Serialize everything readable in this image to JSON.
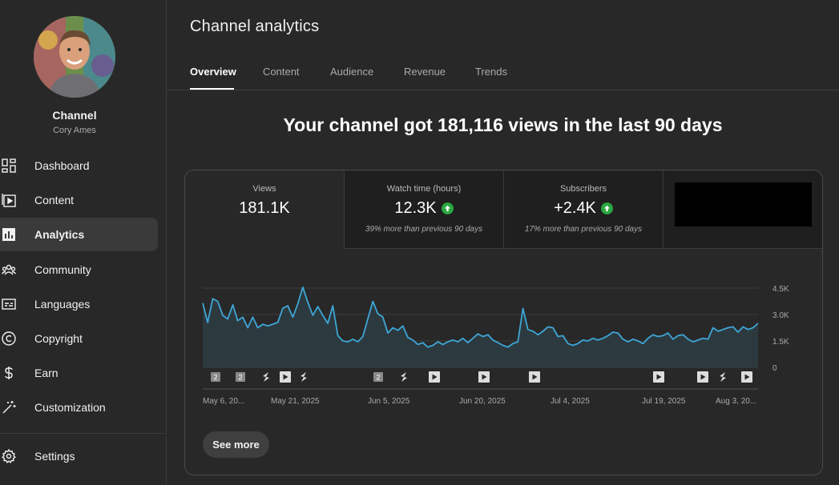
{
  "sidebar": {
    "channel_label": "Channel",
    "channel_handle": "Cory Ames",
    "items": [
      {
        "label": "Dashboard",
        "icon": "dashboard-icon"
      },
      {
        "label": "Content",
        "icon": "content-icon"
      },
      {
        "label": "Analytics",
        "icon": "analytics-icon",
        "active": true
      },
      {
        "label": "Community",
        "icon": "community-icon"
      },
      {
        "label": "Languages",
        "icon": "languages-icon"
      },
      {
        "label": "Copyright",
        "icon": "copyright-icon"
      },
      {
        "label": "Earn",
        "icon": "earn-icon"
      },
      {
        "label": "Customization",
        "icon": "customization-icon"
      }
    ],
    "settings_label": "Settings"
  },
  "page": {
    "title": "Channel analytics",
    "tabs": [
      "Overview",
      "Content",
      "Audience",
      "Revenue",
      "Trends"
    ],
    "active_tab": "Overview",
    "headline": "Your channel got 181,116 views in the last 90 days"
  },
  "metrics": [
    {
      "label": "Views",
      "value": "181.1K",
      "note": ""
    },
    {
      "label": "Watch time (hours)",
      "value": "12.3K",
      "note": "39% more than previous 90 days",
      "trend": "up"
    },
    {
      "label": "Subscribers",
      "value": "+2.4K",
      "note": "17% more than previous 90 days",
      "trend": "up"
    }
  ],
  "colors": {
    "accent_line": "#3ea6d6",
    "trend_up": "#2ba640"
  },
  "chart_data": {
    "type": "area",
    "y_ticks": [
      "4.5K",
      "3.0K",
      "1.5K",
      "0"
    ],
    "ylim": [
      0,
      4500
    ],
    "x_tick_labels": [
      "May 6, 20...",
      "May 21, 2025",
      "Jun 5, 2025",
      "Jun 20, 2025",
      "Jul 4, 2025",
      "Jul 19, 2025",
      "Aug 3, 20..."
    ],
    "values": [
      3650,
      2550,
      3900,
      3750,
      2950,
      2750,
      3550,
      2650,
      2850,
      2250,
      2850,
      2250,
      2450,
      2350,
      2450,
      2550,
      3350,
      3500,
      2850,
      3600,
      4550,
      3700,
      2950,
      3450,
      2950,
      2500,
      3500,
      1800,
      1500,
      1450,
      1600,
      1450,
      1750,
      2750,
      3750,
      3050,
      2850,
      1950,
      2250,
      2100,
      2350,
      1700,
      1550,
      1300,
      1400,
      1150,
      1250,
      1450,
      1300,
      1450,
      1550,
      1450,
      1650,
      1400,
      1650,
      1900,
      1750,
      1850,
      1550,
      1400,
      1250,
      1150,
      1350,
      1450,
      3350,
      2150,
      2050,
      1850,
      2050,
      2300,
      2250,
      1750,
      1800,
      1350,
      1250,
      1350,
      1550,
      1500,
      1650,
      1550,
      1650,
      1800,
      2000,
      1950,
      1600,
      1450,
      1600,
      1500,
      1350,
      1650,
      1850,
      1750,
      1800,
      1950,
      1600,
      1800,
      1850,
      1600,
      1450,
      1550,
      1650,
      1600,
      2250,
      2050,
      2150,
      2250,
      2300,
      2000,
      2300,
      2150,
      2250,
      2500
    ],
    "annotations": [
      {
        "type": "number",
        "label": "2"
      },
      {
        "type": "number",
        "label": "2"
      },
      {
        "type": "short",
        "label": ""
      },
      {
        "type": "video",
        "label": ""
      },
      {
        "type": "short",
        "label": ""
      },
      {
        "type": "number",
        "label": "2"
      },
      {
        "type": "short",
        "label": ""
      },
      {
        "type": "video",
        "label": ""
      },
      {
        "type": "video",
        "label": ""
      },
      {
        "type": "video",
        "label": ""
      },
      {
        "type": "video",
        "label": ""
      },
      {
        "type": "video",
        "label": ""
      },
      {
        "type": "short",
        "label": ""
      },
      {
        "type": "video",
        "label": ""
      }
    ]
  },
  "buttons": {
    "see_more": "See more"
  }
}
